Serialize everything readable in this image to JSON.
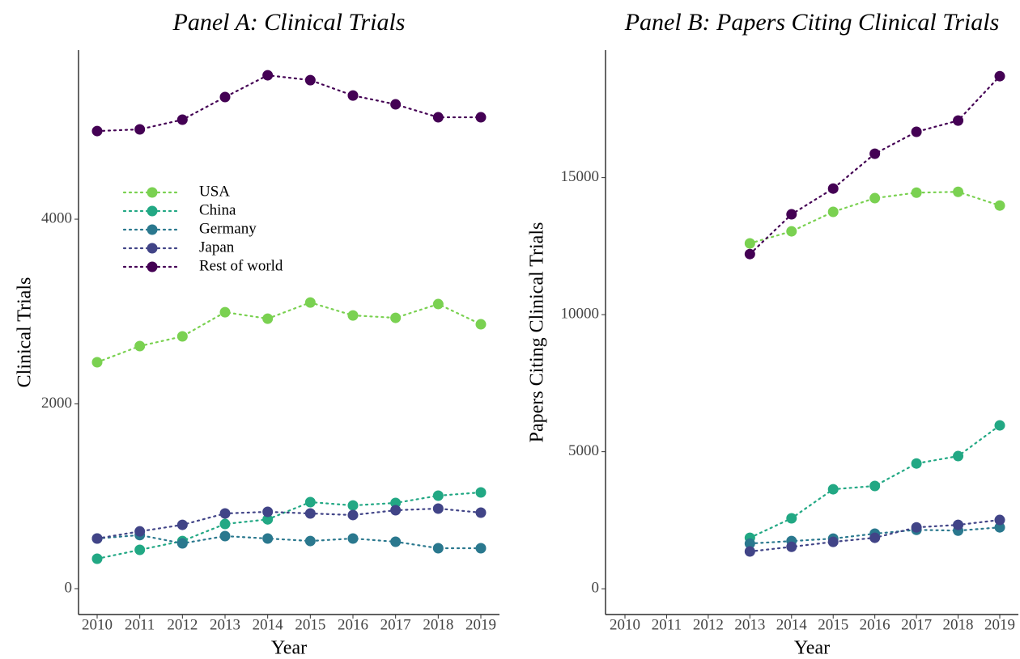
{
  "chart_data": [
    {
      "type": "line",
      "title": "Panel A: Clinical Trials",
      "x_label": "Year",
      "y_label": "Clinical Trials",
      "categories": [
        "2010",
        "2011",
        "2012",
        "2013",
        "2014",
        "2015",
        "2016",
        "2017",
        "2018",
        "2019"
      ],
      "ylim": [
        -280,
        5830
      ],
      "yticks": [
        0,
        2000,
        4000
      ],
      "legend": "upper-left",
      "series": [
        {
          "name": "USA",
          "color": "#7AD151",
          "values": [
            2451,
            2626,
            2731,
            2993,
            2923,
            3098,
            2958,
            2932,
            3081,
            2862
          ]
        },
        {
          "name": "China",
          "color": "#22A884",
          "values": [
            324,
            420,
            516,
            700,
            750,
            937,
            901,
            928,
            1007,
            1042
          ]
        },
        {
          "name": "Germany",
          "color": "#2A788E",
          "values": [
            543,
            580,
            490,
            569,
            543,
            516,
            543,
            508,
            438,
            438
          ]
        },
        {
          "name": "Japan",
          "color": "#414487",
          "values": [
            543,
            620,
            691,
            814,
            832,
            814,
            797,
            849,
            867,
            823
          ]
        },
        {
          "name": "Rest of world",
          "color": "#440154",
          "values": [
            4954,
            4972,
            5077,
            5322,
            5558,
            5505,
            5339,
            5243,
            5103,
            5103
          ]
        }
      ]
    },
    {
      "type": "line",
      "title": "Panel B: Papers Citing Clinical Trials",
      "x_label": "Year",
      "y_label": "Papers Citing Clinical Trials",
      "categories": [
        "2010",
        "2011",
        "2012",
        "2013",
        "2014",
        "2015",
        "2016",
        "2017",
        "2018",
        "2019"
      ],
      "ylim": [
        -940,
        19650
      ],
      "yticks": [
        0,
        5000,
        10000,
        15000
      ],
      "series": [
        {
          "name": "USA",
          "color": "#7AD151",
          "values": [
            null,
            null,
            null,
            12600,
            13040,
            13750,
            14250,
            14450,
            14480,
            13980
          ]
        },
        {
          "name": "China",
          "color": "#22A884",
          "values": [
            null,
            null,
            null,
            1860,
            2570,
            3630,
            3750,
            4570,
            4840,
            5960
          ]
        },
        {
          "name": "Germany",
          "color": "#2A788E",
          "values": [
            null,
            null,
            null,
            1650,
            1740,
            1830,
            2010,
            2150,
            2120,
            2240
          ]
        },
        {
          "name": "Japan",
          "color": "#414487",
          "values": [
            null,
            null,
            null,
            1360,
            1530,
            1710,
            1860,
            2240,
            2330,
            2510
          ]
        },
        {
          "name": "Rest of world",
          "color": "#440154",
          "values": [
            null,
            null,
            null,
            12210,
            13660,
            14600,
            15870,
            16670,
            17080,
            18700
          ]
        }
      ]
    }
  ]
}
